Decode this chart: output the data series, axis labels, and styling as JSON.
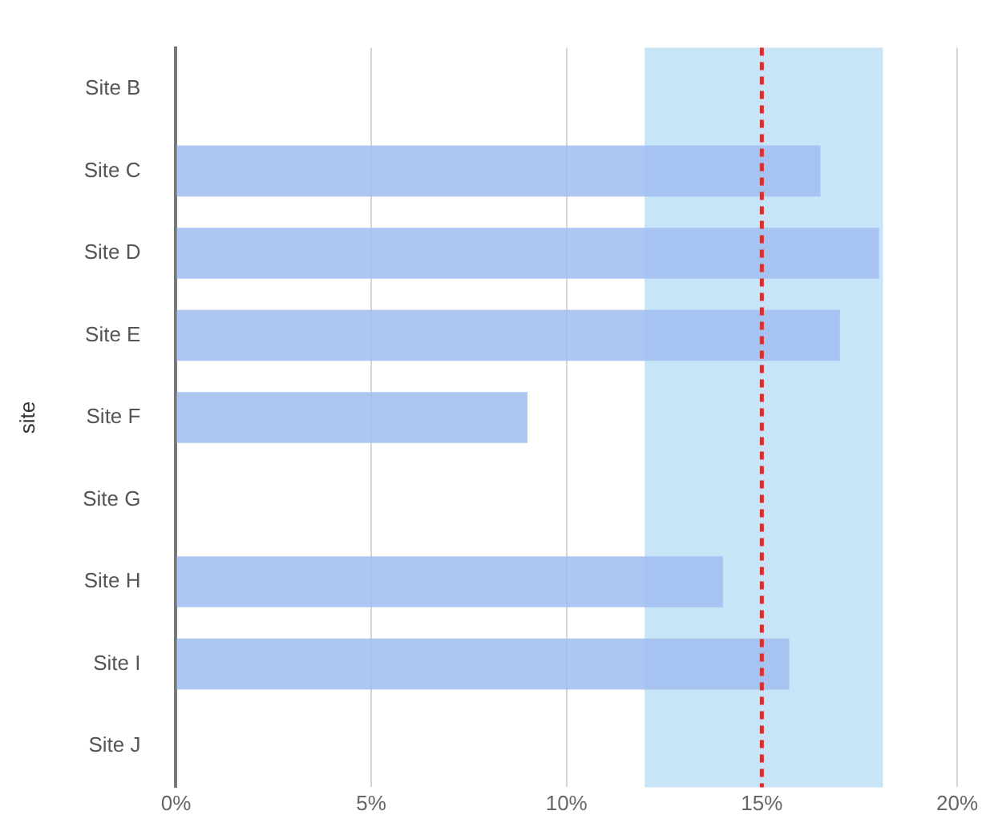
{
  "chart_data": {
    "type": "bar",
    "orientation": "horizontal",
    "ylabel": "site",
    "categories": [
      "Site B",
      "Site C",
      "Site D",
      "Site E",
      "Site F",
      "Site G",
      "Site H",
      "Site I",
      "Site J"
    ],
    "values": [
      null,
      16.5,
      18.0,
      17.0,
      9.0,
      null,
      14.0,
      15.7,
      null
    ],
    "color": "#a0bdf0",
    "xlim": [
      0,
      20
    ],
    "xticks": [
      {
        "value": 0,
        "label": "0%"
      },
      {
        "value": 5,
        "label": "5%"
      },
      {
        "value": 10,
        "label": "10%"
      },
      {
        "value": 15,
        "label": "15%"
      },
      {
        "value": 20,
        "label": "20%"
      }
    ],
    "grid": "x",
    "ref_lines": [
      {
        "axis": "x",
        "value": 15,
        "color": "#d62f2f",
        "line_style": "dashed"
      }
    ],
    "bands": [
      {
        "axis": "x",
        "from": 12,
        "to": 18.1,
        "color": "#c8e4f7"
      }
    ]
  }
}
